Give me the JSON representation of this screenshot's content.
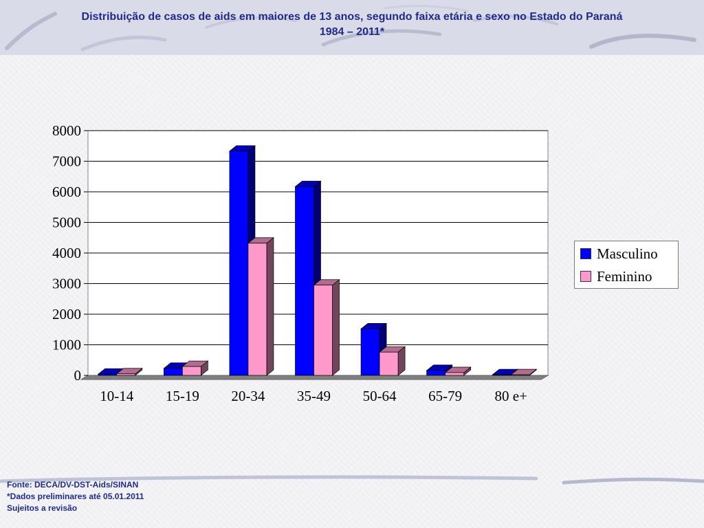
{
  "slide": {
    "title_line1": "Distribuição de casos de aids em maiores de 13 anos, segundo faixa etária e sexo no Estado do Paraná",
    "title_line2": "1984 – 2011*",
    "footer": [
      "Fonte: DECA/DV-DST-Aids/SINAN",
      "*Dados preliminares até 05.01.2011",
      "Sujeitos a revisão"
    ]
  },
  "chart_data": {
    "type": "bar",
    "categories": [
      "10-14",
      "15-19",
      "20-34",
      "35-49",
      "50-64",
      "65-79",
      "80 e+"
    ],
    "series": [
      {
        "name": "Masculino",
        "color": "#0000ff",
        "values": [
          40,
          230,
          7330,
          6170,
          1520,
          160,
          20
        ]
      },
      {
        "name": "Feminino",
        "color": "#ff99cc",
        "values": [
          50,
          290,
          4320,
          2950,
          760,
          90,
          20
        ]
      }
    ],
    "yticks": [
      0,
      1000,
      2000,
      3000,
      4000,
      5000,
      6000,
      7000,
      8000
    ],
    "ylim": [
      0,
      8000
    ],
    "grid": true,
    "legend_position": "right"
  }
}
